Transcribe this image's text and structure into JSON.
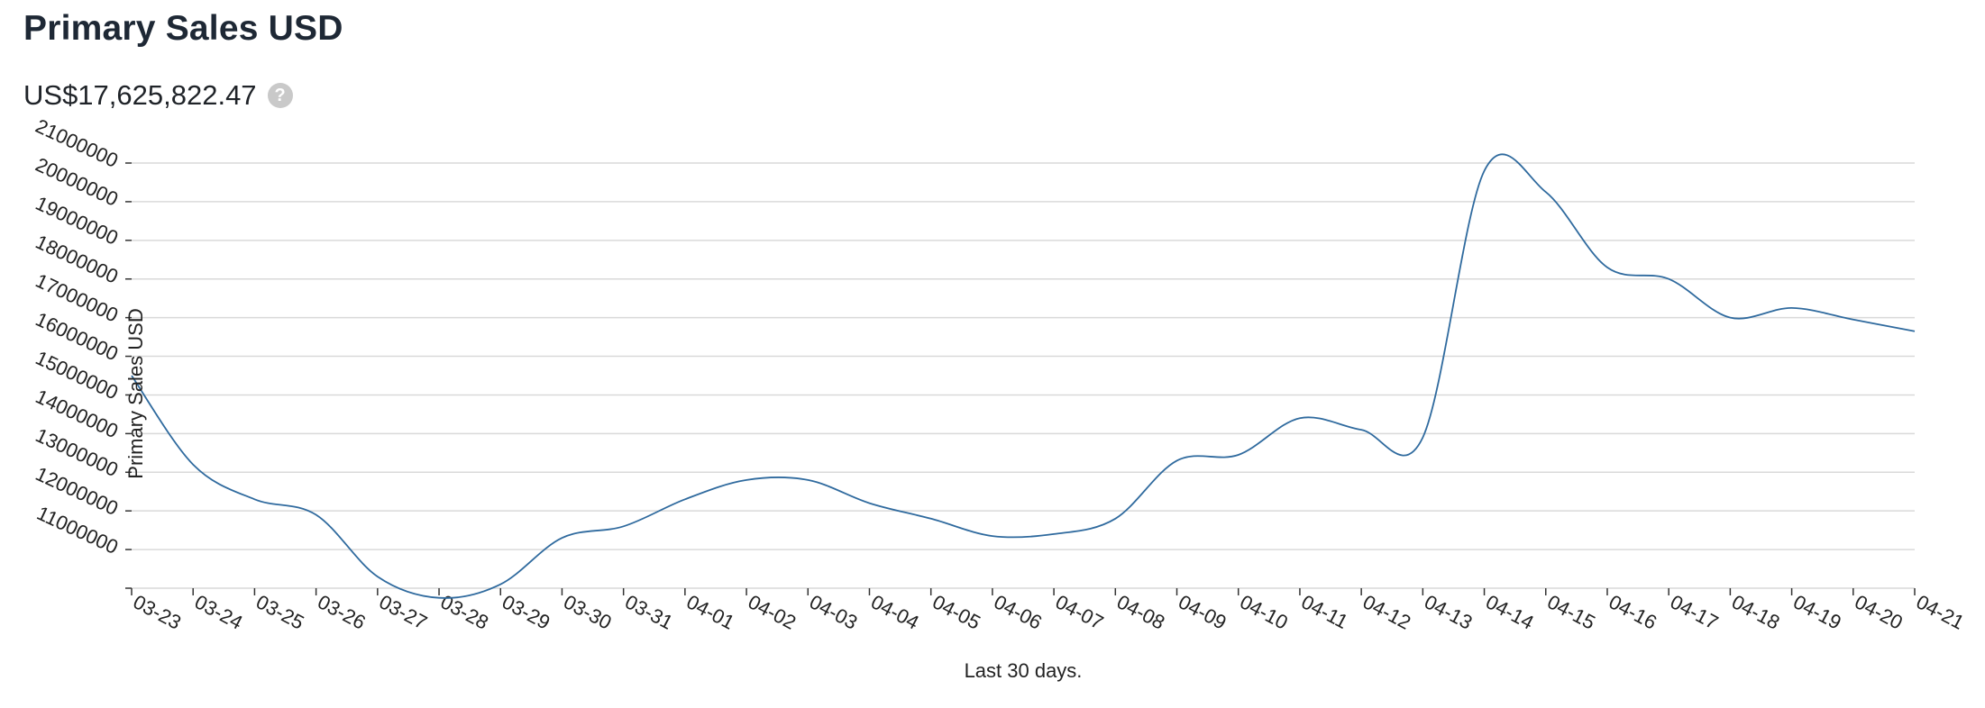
{
  "header": {
    "title": "Primary Sales USD",
    "total_value": "US$17,625,822.47",
    "help_icon": "question-circle-icon"
  },
  "chart_data": {
    "type": "line",
    "title": "",
    "xlabel": "Last 30 days.",
    "ylabel": "Primary Sales USD",
    "ylim": [
      10000000,
      21000000
    ],
    "grid": true,
    "line_color": "#2f6a9e",
    "grid_color": "#d9d9d9",
    "y_ticks": [
      "11000000",
      "12000000",
      "13000000",
      "14000000",
      "15000000",
      "16000000",
      "17000000",
      "18000000",
      "19000000",
      "20000000",
      "21000000"
    ],
    "categories": [
      "03-23",
      "03-24",
      "03-25",
      "03-26",
      "03-27",
      "03-28",
      "03-29",
      "03-30",
      "03-31",
      "04-01",
      "04-02",
      "04-03",
      "04-04",
      "04-05",
      "04-06",
      "04-07",
      "04-08",
      "04-09",
      "04-10",
      "04-11",
      "04-12",
      "04-13",
      "04-14",
      "04-15",
      "04-16",
      "04-17",
      "04-18",
      "04-19",
      "04-20",
      "04-21"
    ],
    "series": [
      {
        "values": [
          15500000,
          13200000,
          12300000,
          11900000,
          10300000,
          9750000,
          10100000,
          11300000,
          11600000,
          12300000,
          12800000,
          12800000,
          12200000,
          11800000,
          11350000,
          11400000,
          11800000,
          13300000,
          13450000,
          14400000,
          14100000,
          13900000,
          20800000,
          20250000,
          18300000,
          18000000,
          17000000,
          17250000,
          16950000,
          16650000
        ]
      }
    ]
  }
}
